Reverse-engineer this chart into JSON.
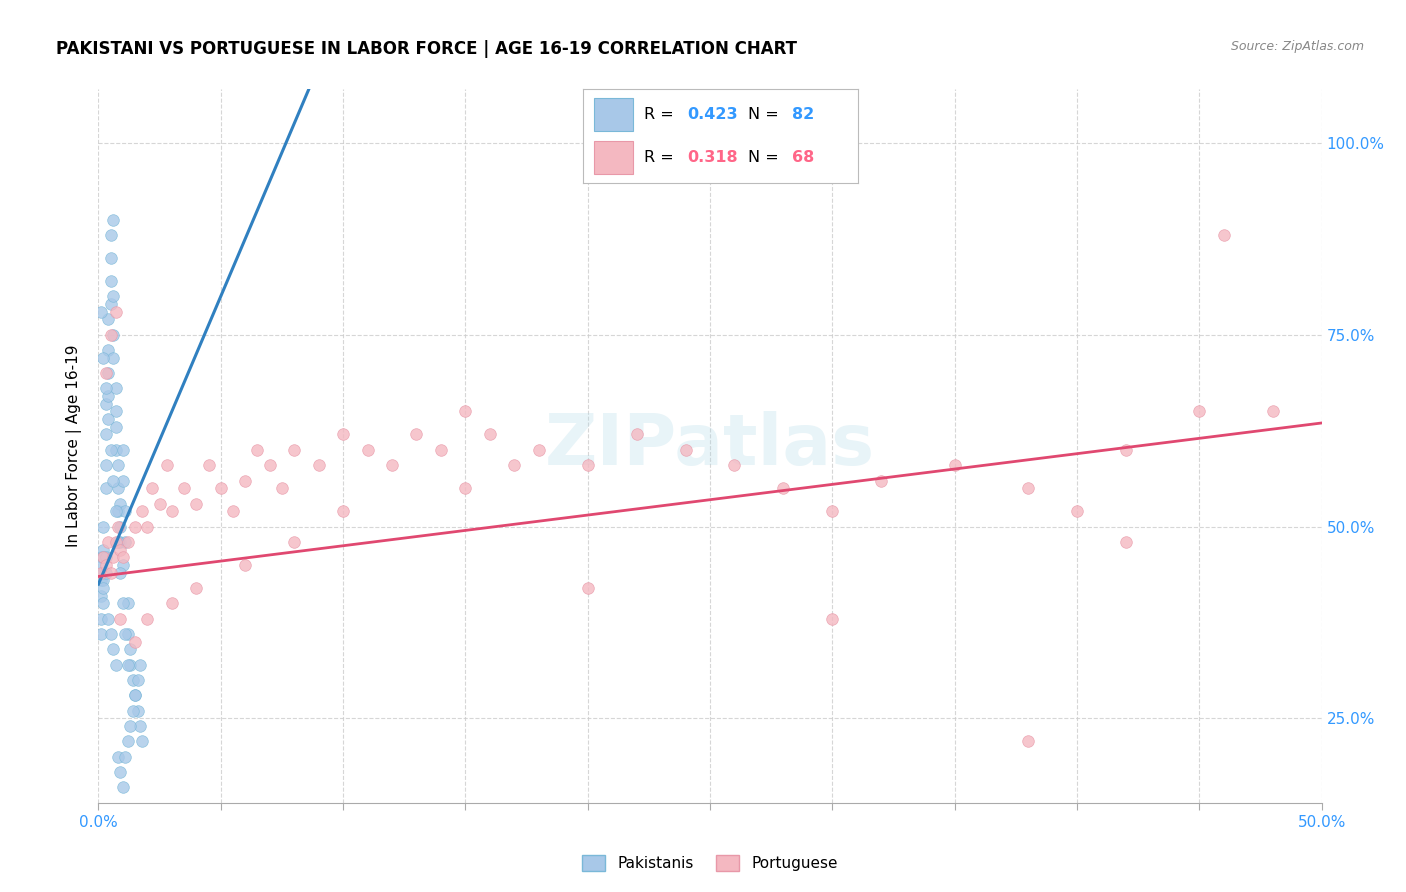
{
  "title": "PAKISTANI VS PORTUGUESE IN LABOR FORCE | AGE 16-19 CORRELATION CHART",
  "source": "Source: ZipAtlas.com",
  "ylabel": "In Labor Force | Age 16-19",
  "xlim": [
    0.0,
    0.5
  ],
  "ylim": [
    0.14,
    1.07
  ],
  "yticks": [
    0.25,
    0.5,
    0.75,
    1.0
  ],
  "ytick_labels": [
    "25.0%",
    "50.0%",
    "75.0%",
    "100.0%"
  ],
  "pakistani_scatter_color": "#a8c8e8",
  "pakistani_scatter_edge": "#7ab8d8",
  "portuguese_scatter_color": "#f4b8c1",
  "portuguese_scatter_edge": "#e898a8",
  "pakistani_line_color": "#3080c0",
  "portuguese_line_color": "#e04870",
  "blue_text_color": "#3399ff",
  "pink_text_color": "#ff6688",
  "axis_color": "#3399ff",
  "background_color": "#ffffff",
  "grid_color": "#cccccc",
  "title_fontsize": 12,
  "axis_fontsize": 11,
  "scatter_size": 70,
  "legend_r1": "0.423",
  "legend_n1": "82",
  "legend_r2": "0.318",
  "legend_n2": "68",
  "pak_x": [
    0.001,
    0.001,
    0.001,
    0.001,
    0.001,
    0.002,
    0.002,
    0.002,
    0.002,
    0.002,
    0.003,
    0.003,
    0.003,
    0.003,
    0.004,
    0.004,
    0.004,
    0.004,
    0.005,
    0.005,
    0.005,
    0.005,
    0.006,
    0.006,
    0.006,
    0.006,
    0.007,
    0.007,
    0.007,
    0.007,
    0.008,
    0.008,
    0.008,
    0.009,
    0.009,
    0.009,
    0.01,
    0.01,
    0.01,
    0.011,
    0.011,
    0.012,
    0.012,
    0.013,
    0.013,
    0.014,
    0.015,
    0.016,
    0.017,
    0.018,
    0.001,
    0.001,
    0.002,
    0.002,
    0.003,
    0.003,
    0.004,
    0.005,
    0.006,
    0.007,
    0.008,
    0.009,
    0.01,
    0.011,
    0.012,
    0.013,
    0.014,
    0.015,
    0.016,
    0.017,
    0.001,
    0.002,
    0.003,
    0.004,
    0.005,
    0.006,
    0.007,
    0.008,
    0.009,
    0.01,
    0.011,
    0.012
  ],
  "pak_y": [
    0.44,
    0.46,
    0.43,
    0.45,
    0.41,
    0.44,
    0.47,
    0.43,
    0.46,
    0.5,
    0.55,
    0.58,
    0.62,
    0.66,
    0.67,
    0.7,
    0.73,
    0.77,
    0.79,
    0.82,
    0.85,
    0.88,
    0.9,
    0.8,
    0.75,
    0.72,
    0.65,
    0.6,
    0.63,
    0.68,
    0.55,
    0.58,
    0.52,
    0.5,
    0.48,
    0.53,
    0.56,
    0.6,
    0.45,
    0.48,
    0.52,
    0.4,
    0.36,
    0.34,
    0.32,
    0.3,
    0.28,
    0.26,
    0.24,
    0.22,
    0.38,
    0.36,
    0.4,
    0.42,
    0.44,
    0.46,
    0.38,
    0.36,
    0.34,
    0.32,
    0.2,
    0.18,
    0.16,
    0.2,
    0.22,
    0.24,
    0.26,
    0.28,
    0.3,
    0.32,
    0.78,
    0.72,
    0.68,
    0.64,
    0.6,
    0.56,
    0.52,
    0.48,
    0.44,
    0.4,
    0.36,
    0.32
  ],
  "por_x": [
    0.001,
    0.002,
    0.003,
    0.004,
    0.005,
    0.006,
    0.007,
    0.008,
    0.009,
    0.01,
    0.012,
    0.015,
    0.018,
    0.02,
    0.022,
    0.025,
    0.028,
    0.03,
    0.035,
    0.04,
    0.045,
    0.05,
    0.055,
    0.06,
    0.065,
    0.07,
    0.075,
    0.08,
    0.09,
    0.1,
    0.11,
    0.12,
    0.13,
    0.14,
    0.15,
    0.16,
    0.17,
    0.18,
    0.2,
    0.22,
    0.24,
    0.26,
    0.28,
    0.3,
    0.32,
    0.35,
    0.38,
    0.4,
    0.42,
    0.45,
    0.003,
    0.005,
    0.007,
    0.009,
    0.015,
    0.02,
    0.03,
    0.04,
    0.06,
    0.08,
    0.1,
    0.15,
    0.2,
    0.3,
    0.38,
    0.42,
    0.46,
    0.48
  ],
  "por_y": [
    0.44,
    0.46,
    0.45,
    0.48,
    0.44,
    0.46,
    0.48,
    0.5,
    0.47,
    0.46,
    0.48,
    0.5,
    0.52,
    0.5,
    0.55,
    0.53,
    0.58,
    0.52,
    0.55,
    0.53,
    0.58,
    0.55,
    0.52,
    0.56,
    0.6,
    0.58,
    0.55,
    0.6,
    0.58,
    0.62,
    0.6,
    0.58,
    0.62,
    0.6,
    0.65,
    0.62,
    0.58,
    0.6,
    0.58,
    0.62,
    0.6,
    0.58,
    0.55,
    0.52,
    0.56,
    0.58,
    0.55,
    0.52,
    0.6,
    0.65,
    0.7,
    0.75,
    0.78,
    0.38,
    0.35,
    0.38,
    0.4,
    0.42,
    0.45,
    0.48,
    0.52,
    0.55,
    0.42,
    0.38,
    0.22,
    0.48,
    0.88,
    0.65
  ]
}
